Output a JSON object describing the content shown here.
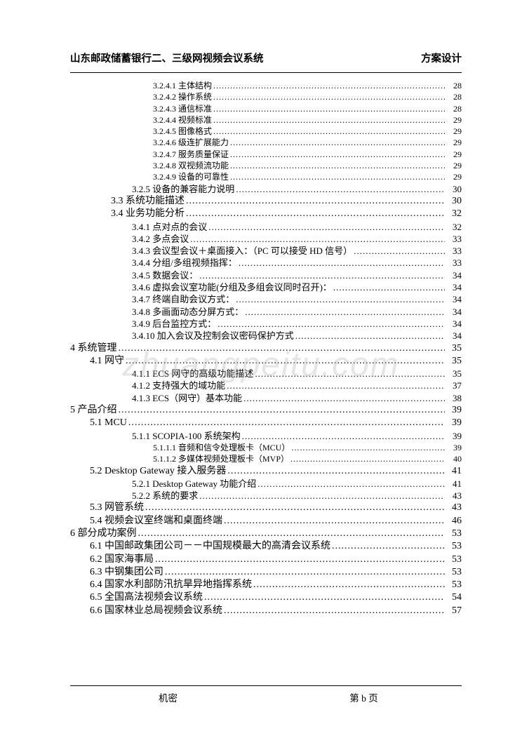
{
  "header": {
    "left": "山东邮政储蓄银行二、三级网视频会议系统",
    "right": "方案设计"
  },
  "watermark": "zhuangpeitu.com",
  "footer": {
    "left": "机密",
    "right": "第 b 页"
  },
  "colors": {
    "text": "#000000",
    "bg": "#ffffff",
    "rule": "#000000",
    "watermark": "rgba(180,180,180,0.35)"
  },
  "typography": {
    "body_font": "SimSun",
    "header_size_pt": 11,
    "toc_size_pt": 10,
    "footer_size_pt": 10
  },
  "toc": [
    {
      "level": 5,
      "label": "3.2.4.1 主体结构",
      "page": "28"
    },
    {
      "level": 5,
      "label": "3.2.4.2 操作系统",
      "page": "28"
    },
    {
      "level": 5,
      "label": "3.2.4.3 通信标准",
      "page": "28"
    },
    {
      "level": 5,
      "label": "3.2.4.4 视频标准",
      "page": "29"
    },
    {
      "level": 5,
      "label": "3.2.4.5 图像格式",
      "page": "29"
    },
    {
      "level": 5,
      "label": "3.2.4.6 级连扩展能力",
      "page": "29"
    },
    {
      "level": 5,
      "label": "3.2.4.7 服务质量保证",
      "page": "29"
    },
    {
      "level": 5,
      "label": "3.2.4.8 双视频流功能",
      "page": "29"
    },
    {
      "level": 5,
      "label": "3.2.4.9 设备的可靠性",
      "page": "29"
    },
    {
      "level": 4,
      "label": "3.2.5 设备的兼容能力说明",
      "page": "30"
    },
    {
      "level": 3,
      "label": "3.3 系统功能描述",
      "page": "30"
    },
    {
      "level": 3,
      "label": "3.4 业务功能分析",
      "page": "32"
    },
    {
      "level": 4,
      "label": "3.4.1 点对点的会议",
      "page": "32"
    },
    {
      "level": 4,
      "label": "3.4.2 多点会议",
      "page": "33"
    },
    {
      "level": 4,
      "label": "3.4.3 会议型会议＋桌面接入：（PC 可以接受 HD 信号）",
      "page": "33"
    },
    {
      "level": 4,
      "label": "3.4.4 分组/多组视频指挥：",
      "page": "33"
    },
    {
      "level": 4,
      "label": "3.4.5 数据会议：",
      "page": "34"
    },
    {
      "level": 4,
      "label": "3.4.6 虚拟会议室功能(分组及多组会议同时召开)：",
      "page": "34"
    },
    {
      "level": 4,
      "label": "3.4.7 终端自助会议方式：",
      "page": "34"
    },
    {
      "level": 4,
      "label": "3.4.8 多画面动态分屏方式：",
      "page": "34"
    },
    {
      "level": 4,
      "label": "3.4.9 后台监控方式：",
      "page": "34"
    },
    {
      "level": 4,
      "label": "3.4.10 加入会议及控制会议密码保护方式",
      "page": "34"
    },
    {
      "level": 1,
      "label": "4 系统管理",
      "page": "35"
    },
    {
      "level": 2,
      "label": "4.1 网守",
      "page": "35"
    },
    {
      "level": 4,
      "label": "4.1.1 ECS 网守的高级功能描述",
      "page": "35"
    },
    {
      "level": 4,
      "label": "4.1.2 支持强大的域功能",
      "page": "37"
    },
    {
      "level": 4,
      "label": "4.1.3 ECS（网守）基本功能",
      "page": "38"
    },
    {
      "level": 1,
      "label": "5 产品介绍",
      "page": "39"
    },
    {
      "level": 2,
      "label": "5.1 MCU",
      "page": "39"
    },
    {
      "level": 4,
      "label": "5.1.1 SCOPIA-100 系统架构",
      "page": "39"
    },
    {
      "level": 5,
      "label": "5.1.1.1 音频和信令处理板卡（MCU）",
      "page": "39"
    },
    {
      "level": 5,
      "label": "5.1.1.2 多媒体视频处理板卡（MVP）",
      "page": "40"
    },
    {
      "level": 2,
      "label": "5.2 Desktop Gateway 接入服务器",
      "page": "41"
    },
    {
      "level": 4,
      "label": "5.2.1 Desktop Gateway 功能介绍",
      "page": "41"
    },
    {
      "level": 4,
      "label": "5.2.2 系统的要求",
      "page": "43"
    },
    {
      "level": 2,
      "label": "5.3 网管系统",
      "page": "43"
    },
    {
      "level": 2,
      "label": "5.4 视频会议室终端和桌面终端",
      "page": "46"
    },
    {
      "level": 1,
      "label": "6 部分成功案例",
      "page": "53"
    },
    {
      "level": 2,
      "label": "6.1 中国邮政集团公司－－中国规模最大的高清会议系统",
      "page": "53"
    },
    {
      "level": 2,
      "label": "6.2 国家海事局",
      "page": "53"
    },
    {
      "level": 2,
      "label": "6.3 中钢集团公司",
      "page": "53"
    },
    {
      "level": 2,
      "label": "6.4 国家水利部防汛抗旱异地指挥系统",
      "page": "53"
    },
    {
      "level": 2,
      "label": "6.5 全国高法视频会议系统",
      "page": "54"
    },
    {
      "level": 2,
      "label": "6.6 国家林业总局视频会议系统",
      "page": "57"
    }
  ]
}
